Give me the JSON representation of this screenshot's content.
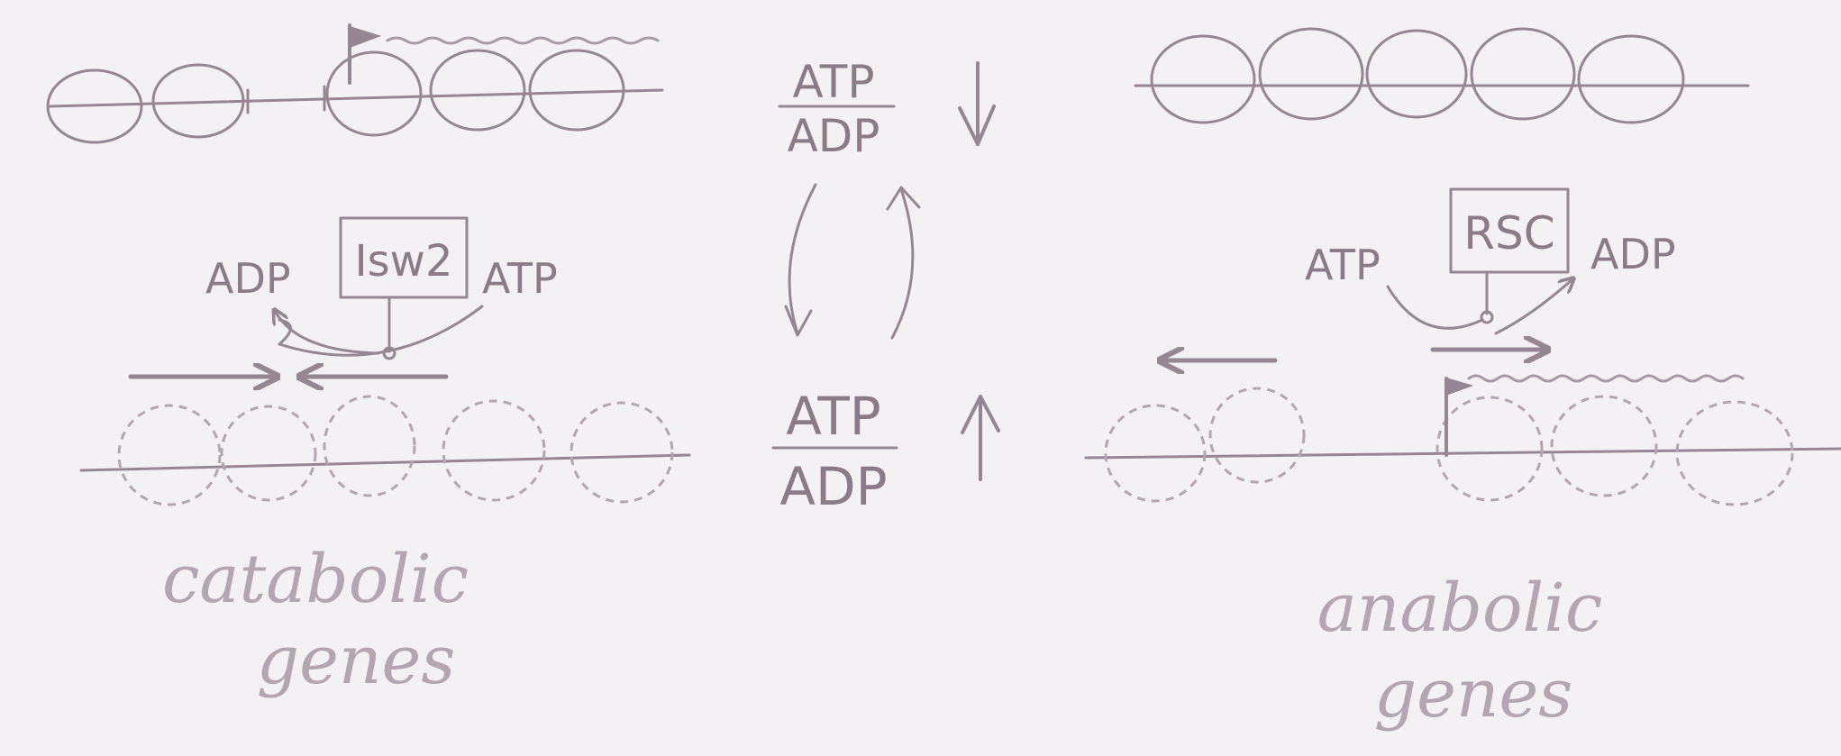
{
  "colors": {
    "paper": "#f3f1f4",
    "pencil": "#958792",
    "pencil_light": "#b3a6b0"
  },
  "center": {
    "top_ratio": {
      "numerator": "ATP",
      "denominator": "ADP",
      "arrow": "down-arrow-icon"
    },
    "bottom_ratio": {
      "numerator": "ATP",
      "denominator": "ADP",
      "arrow": "up-arrow-icon"
    },
    "cycle": "cycle-arrows-icon"
  },
  "left_panel": {
    "remodeler": "Isw2",
    "left_nucleotide": "ADP",
    "right_nucleotide": "ATP",
    "caption_line1": "catabolic",
    "caption_line2": "genes"
  },
  "right_panel": {
    "remodeler": "RSC",
    "left_nucleotide": "ATP",
    "right_nucleotide": "ADP",
    "caption_line1": "anabolic",
    "caption_line2": "genes"
  }
}
